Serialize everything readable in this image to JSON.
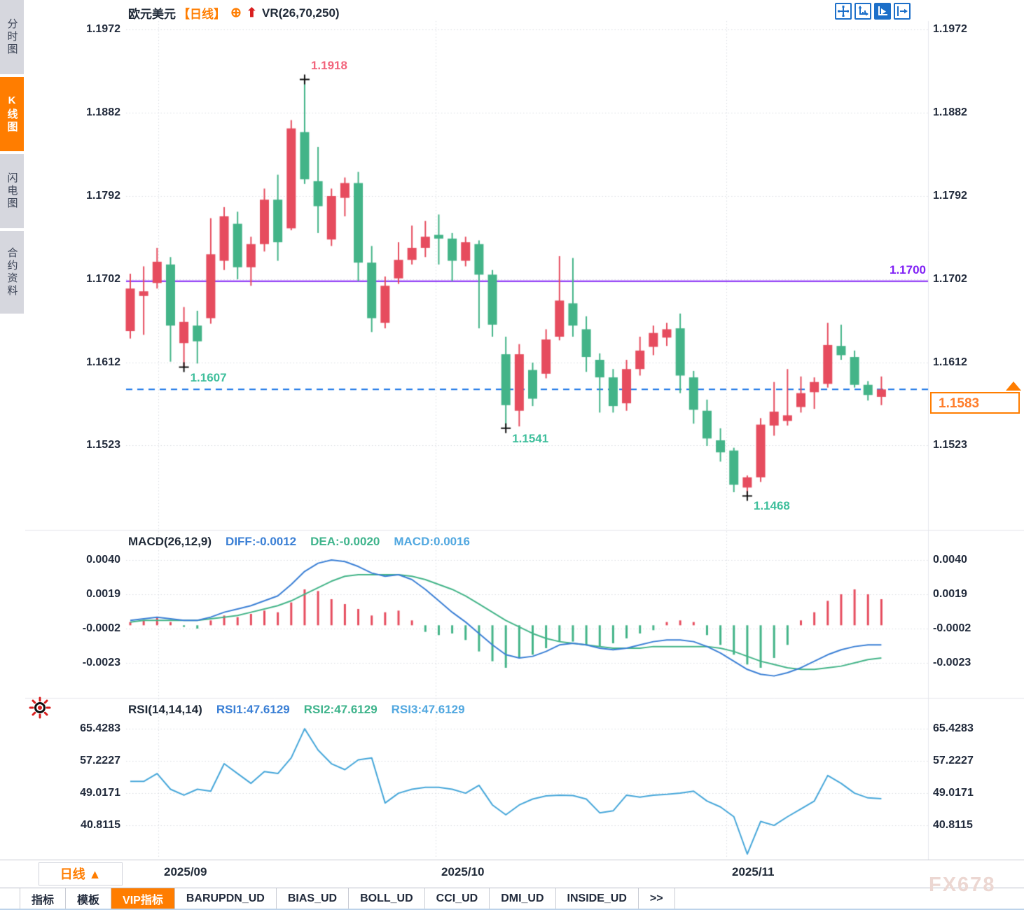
{
  "header": {
    "instrument": "欧元美元",
    "period_tag": "【日线】",
    "indicator_label": "VR(26,70,250)"
  },
  "sidebar": {
    "items": [
      {
        "label": "分时图",
        "active": false
      },
      {
        "label": "K线图",
        "active": true
      },
      {
        "label": "闪电图",
        "active": false
      },
      {
        "label": "合约资料",
        "active": false
      }
    ]
  },
  "toolbar_icons": [
    "crosshair-move-icon",
    "axis-scale-icon",
    "axis-play-icon",
    "exit-right-icon"
  ],
  "colors": {
    "up_candle": "#e64c5e",
    "down_candle": "#43b488",
    "accent_orange": "#ff7d00",
    "resistance_purple": "#8021f5",
    "price_line_blue": "#1874e8",
    "diff_blue": "#3a7fd5",
    "dea_green": "#43b488",
    "rsi_blue": "#45a6d9",
    "low_label_teal": "#3fbf9c",
    "high_label_pink": "#f2647c"
  },
  "main_panel": {
    "y_axis": [
      "1.1972",
      "1.1882",
      "1.1792",
      "1.1702",
      "1.1612",
      "1.1523"
    ],
    "resistance_line": {
      "value": 1.17,
      "label": "1.1700"
    },
    "current_price": {
      "value": 1.1583,
      "label": "1.1583"
    },
    "annotations": [
      {
        "label": "1.1918",
        "candle": 14,
        "anchor": "high",
        "color": "#f2647c"
      },
      {
        "label": "1.1607",
        "candle": 5,
        "anchor": "low",
        "color": "#3fbf9c"
      },
      {
        "label": "1.1541",
        "candle": 29,
        "anchor": "low",
        "color": "#3fbf9c"
      },
      {
        "label": "1.1468",
        "candle": 47,
        "anchor": "low",
        "color": "#3fbf9c"
      }
    ]
  },
  "xaxis": {
    "labels": [
      "2025/09",
      "2025/10",
      "2025/11"
    ],
    "gridlines_x": [
      226,
      622,
      1037
    ]
  },
  "bottom": {
    "period_label": "日线",
    "period_arrow": "▲",
    "tabs": [
      {
        "label": "指标",
        "active": false
      },
      {
        "label": "模板",
        "active": false
      },
      {
        "label": "VIP指标",
        "active": true
      },
      {
        "label": "BARUPDN_UD",
        "active": false
      },
      {
        "label": "BIAS_UD",
        "active": false
      },
      {
        "label": "BOLL_UD",
        "active": false
      },
      {
        "label": "CCI_UD",
        "active": false
      },
      {
        "label": "DMI_UD",
        "active": false
      },
      {
        "label": "INSIDE_UD",
        "active": false
      },
      {
        "label": ">>",
        "active": false
      }
    ]
  },
  "watermark": "FX678",
  "chart_data": {
    "type": "candlestick",
    "title": "欧元美元 日线",
    "x_labels": [
      "2025/09",
      "2025/10",
      "2025/11"
    ],
    "candles_ohlc": [
      [
        1.1646,
        1.1708,
        1.1638,
        1.1692
      ],
      [
        1.1684,
        1.1716,
        1.1642,
        1.1689
      ],
      [
        1.1698,
        1.1736,
        1.1692,
        1.1721
      ],
      [
        1.1718,
        1.1726,
        1.1613,
        1.1652
      ],
      [
        1.1633,
        1.1672,
        1.1607,
        1.1656
      ],
      [
        1.1652,
        1.1668,
        1.1611,
        1.1635
      ],
      [
        1.166,
        1.1768,
        1.1654,
        1.1729
      ],
      [
        1.1722,
        1.178,
        1.1712,
        1.177
      ],
      [
        1.1762,
        1.1775,
        1.1702,
        1.1715
      ],
      [
        1.1715,
        1.1748,
        1.1695,
        1.174
      ],
      [
        1.174,
        1.18,
        1.1732,
        1.1788
      ],
      [
        1.1788,
        1.1815,
        1.1722,
        1.1742
      ],
      [
        1.1757,
        1.1874,
        1.1755,
        1.1865
      ],
      [
        1.1861,
        1.1918,
        1.1805,
        1.181
      ],
      [
        1.1808,
        1.1845,
        1.1752,
        1.1781
      ],
      [
        1.1745,
        1.18,
        1.1738,
        1.1792
      ],
      [
        1.179,
        1.1812,
        1.177,
        1.1806
      ],
      [
        1.1806,
        1.1818,
        1.17,
        1.172
      ],
      [
        1.172,
        1.1738,
        1.1645,
        1.166
      ],
      [
        1.1655,
        1.1705,
        1.1649,
        1.1695
      ],
      [
        1.1703,
        1.1742,
        1.1697,
        1.1723
      ],
      [
        1.1723,
        1.176,
        1.1718,
        1.1736
      ],
      [
        1.1736,
        1.1765,
        1.1726,
        1.1748
      ],
      [
        1.175,
        1.1772,
        1.1718,
        1.1746
      ],
      [
        1.1746,
        1.1752,
        1.17,
        1.1722
      ],
      [
        1.1722,
        1.1748,
        1.1716,
        1.1742
      ],
      [
        1.174,
        1.1744,
        1.1649,
        1.1707
      ],
      [
        1.1707,
        1.1712,
        1.164,
        1.1653
      ],
      [
        1.1621,
        1.164,
        1.1541,
        1.1566
      ],
      [
        1.156,
        1.1632,
        1.1543,
        1.1621
      ],
      [
        1.1604,
        1.1612,
        1.1565,
        1.1573
      ],
      [
        1.16,
        1.1648,
        1.1595,
        1.1637
      ],
      [
        1.164,
        1.1727,
        1.1636,
        1.1679
      ],
      [
        1.1676,
        1.1725,
        1.164,
        1.1652
      ],
      [
        1.1648,
        1.1662,
        1.1602,
        1.1618
      ],
      [
        1.1615,
        1.1622,
        1.1558,
        1.1596
      ],
      [
        1.1596,
        1.1605,
        1.1558,
        1.1565
      ],
      [
        1.1568,
        1.1615,
        1.156,
        1.1605
      ],
      [
        1.1605,
        1.164,
        1.1598,
        1.1625
      ],
      [
        1.1629,
        1.1652,
        1.162,
        1.1644
      ],
      [
        1.1639,
        1.1655,
        1.163,
        1.1648
      ],
      [
        1.1649,
        1.1665,
        1.1579,
        1.1598
      ],
      [
        1.1596,
        1.1603,
        1.1546,
        1.1561
      ],
      [
        1.156,
        1.1572,
        1.1522,
        1.153
      ],
      [
        1.1528,
        1.1541,
        1.1505,
        1.1515
      ],
      [
        1.1517,
        1.152,
        1.1472,
        1.148
      ],
      [
        1.1477,
        1.149,
        1.1468,
        1.1488
      ],
      [
        1.1488,
        1.1552,
        1.1483,
        1.1545
      ],
      [
        1.1544,
        1.1591,
        1.1533,
        1.1559
      ],
      [
        1.1549,
        1.1605,
        1.1544,
        1.1555
      ],
      [
        1.1564,
        1.1597,
        1.1558,
        1.1579
      ],
      [
        1.158,
        1.1596,
        1.1562,
        1.1591
      ],
      [
        1.1589,
        1.1655,
        1.1585,
        1.1631
      ],
      [
        1.163,
        1.1653,
        1.1615,
        1.162
      ],
      [
        1.1618,
        1.1625,
        1.1585,
        1.1588
      ],
      [
        1.1588,
        1.1592,
        1.1571,
        1.1577
      ],
      [
        1.1575,
        1.1597,
        1.1566,
        1.1583
      ]
    ],
    "macd": {
      "title": "MACD(26,12,9)",
      "diff_label": "DIFF:-0.0012",
      "dea_label": "DEA:-0.0020",
      "macd_label": "MACD:0.0016",
      "y_axis": [
        "0.0040",
        "0.0019",
        "-0.0002",
        "-0.0023"
      ],
      "histogram_1e4": [
        2,
        3,
        5,
        2,
        -1,
        -2,
        3,
        6,
        5,
        7,
        9,
        8,
        14,
        22,
        21,
        16,
        13,
        10,
        6,
        8,
        9,
        3,
        -4,
        -6,
        -5,
        -9,
        -16,
        -22,
        -26,
        -20,
        -18,
        -14,
        -10,
        -10,
        -12,
        -13,
        -11,
        -8,
        -5,
        -3,
        2,
        3,
        2,
        -6,
        -12,
        -18,
        -24,
        -26,
        -20,
        -12,
        3,
        8,
        15,
        19,
        22,
        19,
        16
      ],
      "diff_1e4": [
        3,
        4,
        5,
        4,
        3,
        3,
        5,
        8,
        10,
        12,
        15,
        18,
        25,
        33,
        38,
        40,
        39,
        36,
        32,
        30,
        31,
        28,
        22,
        15,
        8,
        2,
        -5,
        -12,
        -18,
        -20,
        -19,
        -16,
        -12,
        -11,
        -12,
        -14,
        -15,
        -14,
        -12,
        -10,
        -9,
        -9,
        -10,
        -13,
        -17,
        -22,
        -27,
        -30,
        -31,
        -29,
        -26,
        -22,
        -18,
        -15,
        -13,
        -12,
        -12
      ],
      "dea_1e4": [
        2,
        3,
        3,
        3,
        3,
        3,
        4,
        5,
        6,
        8,
        10,
        12,
        15,
        19,
        23,
        27,
        30,
        31,
        31,
        31,
        31,
        30,
        28,
        25,
        22,
        18,
        13,
        8,
        3,
        -1,
        -5,
        -8,
        -10,
        -11,
        -12,
        -13,
        -14,
        -14,
        -14,
        -13,
        -13,
        -13,
        -13,
        -13,
        -14,
        -16,
        -19,
        -22,
        -24,
        -26,
        -27,
        -27,
        -26,
        -25,
        -23,
        -21,
        -20
      ]
    },
    "rsi": {
      "title": "RSI(14,14,14)",
      "rsi1_label": "RSI1:47.6129",
      "rsi2_label": "RSI2:47.6129",
      "rsi3_label": "RSI3:47.6129",
      "y_axis": [
        "65.4283",
        "57.2227",
        "49.0171",
        "40.8115"
      ],
      "values": [
        52,
        52,
        54,
        50,
        48.5,
        50,
        49.5,
        56.5,
        54,
        51.5,
        54.5,
        54,
        58,
        65.4,
        60,
        56.5,
        55,
        57.5,
        58,
        46.5,
        49,
        50,
        50.5,
        50.5,
        50,
        49,
        51,
        46,
        43.5,
        46,
        47.5,
        48.3,
        48.5,
        48.4,
        47.5,
        44,
        44.5,
        48.5,
        48,
        48.5,
        48.7,
        49,
        49.5,
        47,
        45.5,
        43,
        33.5,
        41.8,
        40.8,
        43,
        45,
        47,
        53.5,
        51.5,
        49,
        47.8,
        47.6
      ]
    }
  }
}
